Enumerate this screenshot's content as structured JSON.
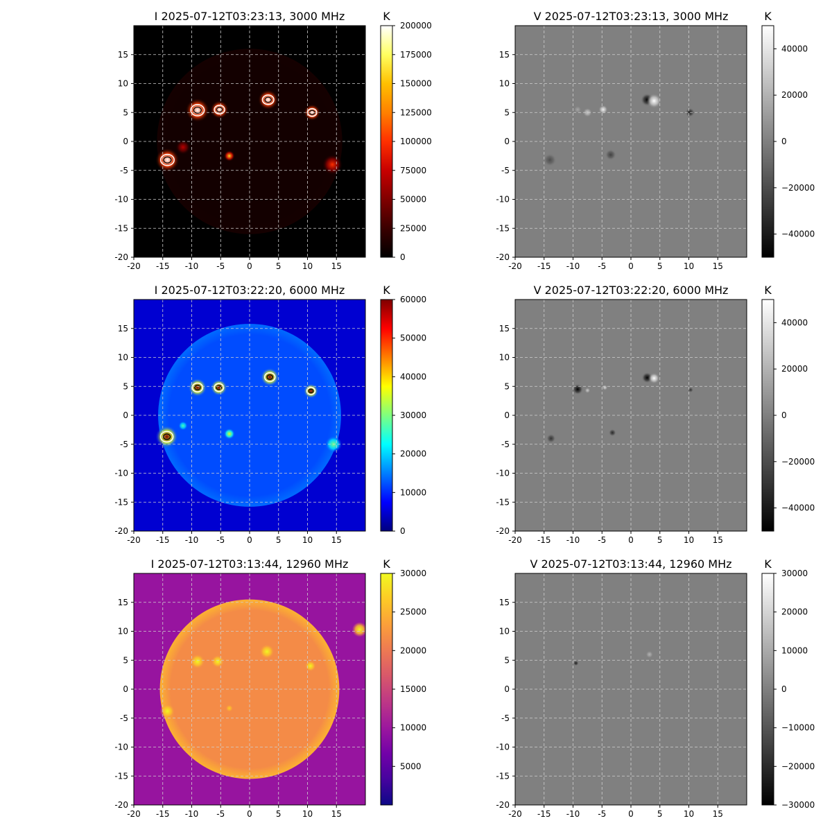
{
  "figure": {
    "background": "#ffffff"
  },
  "chart_data": [
    {
      "type": "heatmap",
      "title": "I 2025-07-12T03:23:13, 3000 MHz",
      "colormap": "hot",
      "colorbar": {
        "label": "K",
        "ticks": [
          "0",
          "25000",
          "50000",
          "75000",
          "100000",
          "125000",
          "150000",
          "175000",
          "200000"
        ],
        "range": [
          0,
          200000
        ]
      },
      "xlim": [
        -20,
        20
      ],
      "ylim": [
        -20,
        20
      ],
      "xticks": [
        "-20",
        "-15",
        "-10",
        "-5",
        "0",
        "5",
        "10",
        "15"
      ],
      "yticks": [
        "-20",
        "-15",
        "-10",
        "-5",
        "0",
        "5",
        "10",
        "15"
      ],
      "grid": true,
      "disk": {
        "present": true,
        "radius": 16,
        "level": 0.04
      },
      "sources": [
        {
          "x": -9,
          "y": 5.4,
          "level": 1.0,
          "size": 1.3
        },
        {
          "x": -5.2,
          "y": 5.5,
          "level": 1.0,
          "size": 1.0
        },
        {
          "x": 3.2,
          "y": 7.2,
          "level": 1.0,
          "size": 1.1
        },
        {
          "x": 10.8,
          "y": 5.0,
          "level": 1.0,
          "size": 0.9
        },
        {
          "x": -14.2,
          "y": -3.2,
          "level": 1.0,
          "size": 1.3
        },
        {
          "x": -3.5,
          "y": -2.5,
          "level": 0.8,
          "size": 0.6
        },
        {
          "x": 14.3,
          "y": -4.0,
          "level": 0.5,
          "size": 1.1
        },
        {
          "x": -11.5,
          "y": -1.0,
          "level": 0.35,
          "size": 0.8
        }
      ],
      "contours": true
    },
    {
      "type": "heatmap",
      "title": "V 2025-07-12T03:23:13, 3000 MHz",
      "colormap": "gray",
      "colorbar": {
        "label": "K",
        "ticks": [
          "40000",
          "20000",
          "0",
          "−20000",
          "−40000"
        ],
        "range": [
          -50000,
          50000
        ]
      },
      "xlim": [
        -20,
        20
      ],
      "ylim": [
        -20,
        20
      ],
      "xticks": [
        "-20",
        "-15",
        "-10",
        "-5",
        "0",
        "5",
        "10",
        "15"
      ],
      "yticks": [
        "-20",
        "-15",
        "-10",
        "-5",
        "0",
        "5",
        "10",
        "15"
      ],
      "grid": true,
      "background_level": 0.5,
      "sources": [
        {
          "x": 2.8,
          "y": 7.2,
          "level": 0.0,
          "size": 0.7
        },
        {
          "x": 4.0,
          "y": 7.0,
          "level": 1.0,
          "size": 0.8
        },
        {
          "x": 10.2,
          "y": 5.0,
          "level": 0.1,
          "size": 0.5
        },
        {
          "x": -4.8,
          "y": 5.5,
          "level": 0.95,
          "size": 0.5
        },
        {
          "x": -7.5,
          "y": 5.0,
          "level": 0.8,
          "size": 0.5
        },
        {
          "x": -9.2,
          "y": 5.5,
          "level": 0.65,
          "size": 0.4
        },
        {
          "x": -14.0,
          "y": -3.2,
          "level": 0.3,
          "size": 0.7
        },
        {
          "x": -3.5,
          "y": -2.3,
          "level": 0.25,
          "size": 0.6
        }
      ]
    },
    {
      "type": "heatmap",
      "title": "I 2025-07-12T03:22:20, 6000 MHz",
      "colormap": "jet",
      "colorbar": {
        "label": "K",
        "ticks": [
          "0",
          "10000",
          "20000",
          "30000",
          "40000",
          "50000",
          "60000"
        ],
        "range": [
          0,
          60000
        ]
      },
      "xlim": [
        -20,
        20
      ],
      "ylim": [
        -20,
        20
      ],
      "xticks": [
        "-20",
        "-15",
        "-10",
        "-5",
        "0",
        "5",
        "10",
        "15"
      ],
      "yticks": [
        "-20",
        "-15",
        "-10",
        "-5",
        "0",
        "5",
        "10",
        "15"
      ],
      "grid": true,
      "disk": {
        "present": true,
        "radius": 15.8,
        "level": 0.2
      },
      "background_level": 0.08,
      "sources": [
        {
          "x": -9,
          "y": 4.8,
          "level": 1.0,
          "size": 1.0
        },
        {
          "x": -5.3,
          "y": 4.8,
          "level": 1.0,
          "size": 0.9
        },
        {
          "x": 3.5,
          "y": 6.6,
          "level": 1.0,
          "size": 1.0
        },
        {
          "x": 10.6,
          "y": 4.2,
          "level": 1.0,
          "size": 0.8
        },
        {
          "x": -14.3,
          "y": -3.7,
          "level": 1.0,
          "size": 1.2
        },
        {
          "x": -3.5,
          "y": -3.2,
          "level": 0.6,
          "size": 0.6
        },
        {
          "x": 14.5,
          "y": -5.0,
          "level": 0.5,
          "size": 0.9
        },
        {
          "x": -11.5,
          "y": -1.8,
          "level": 0.45,
          "size": 0.5
        }
      ],
      "contours": true
    },
    {
      "type": "heatmap",
      "title": "V 2025-07-12T03:22:20, 6000 MHz",
      "colormap": "gray",
      "colorbar": {
        "label": "K",
        "ticks": [
          "40000",
          "20000",
          "0",
          "−20000",
          "−40000"
        ],
        "range": [
          -50000,
          50000
        ]
      },
      "xlim": [
        -20,
        20
      ],
      "ylim": [
        -20,
        20
      ],
      "xticks": [
        "-20",
        "-15",
        "-10",
        "-5",
        "0",
        "5",
        "10",
        "15"
      ],
      "yticks": [
        "-20",
        "-15",
        "-10",
        "-5",
        "0",
        "5",
        "10",
        "15"
      ],
      "grid": true,
      "background_level": 0.5,
      "sources": [
        {
          "x": 2.8,
          "y": 6.5,
          "level": 0.0,
          "size": 0.6
        },
        {
          "x": 4.0,
          "y": 6.4,
          "level": 1.0,
          "size": 0.6
        },
        {
          "x": -9.2,
          "y": 4.5,
          "level": 0.0,
          "size": 0.6
        },
        {
          "x": -7.5,
          "y": 4.3,
          "level": 0.8,
          "size": 0.3
        },
        {
          "x": -4.5,
          "y": 4.8,
          "level": 0.85,
          "size": 0.3
        },
        {
          "x": 10.3,
          "y": 4.4,
          "level": 0.2,
          "size": 0.3
        },
        {
          "x": -13.8,
          "y": -4.0,
          "level": 0.2,
          "size": 0.5
        },
        {
          "x": -3.2,
          "y": -3.0,
          "level": 0.15,
          "size": 0.4
        }
      ]
    },
    {
      "type": "heatmap",
      "title": "I 2025-07-12T03:13:44, 12960 MHz",
      "colormap": "plasma",
      "colorbar": {
        "label": "K",
        "ticks": [
          "5000",
          "10000",
          "15000",
          "20000",
          "25000",
          "30000"
        ],
        "range": [
          0,
          30000
        ]
      },
      "xlim": [
        -20,
        20
      ],
      "ylim": [
        -20,
        20
      ],
      "xticks": [
        "-20",
        "-15",
        "-10",
        "-5",
        "0",
        "5",
        "10",
        "15"
      ],
      "yticks": [
        "-20",
        "-15",
        "-10",
        "-5",
        "0",
        "5",
        "10",
        "15"
      ],
      "grid": true,
      "disk": {
        "present": true,
        "radius": 15.5,
        "level": 0.72
      },
      "background_level": 0.32,
      "sources": [
        {
          "x": -9.0,
          "y": 4.8,
          "level": 1.0,
          "size": 0.8
        },
        {
          "x": -5.5,
          "y": 4.8,
          "level": 1.0,
          "size": 0.7
        },
        {
          "x": 3.0,
          "y": 6.5,
          "level": 1.0,
          "size": 0.8
        },
        {
          "x": 10.5,
          "y": 4.0,
          "level": 1.0,
          "size": 0.6
        },
        {
          "x": -14.2,
          "y": -3.8,
          "level": 1.0,
          "size": 0.8
        },
        {
          "x": 19.0,
          "y": 10.3,
          "level": 1.0,
          "size": 0.8
        },
        {
          "x": -3.5,
          "y": -3.3,
          "level": 0.9,
          "size": 0.4
        }
      ]
    },
    {
      "type": "heatmap",
      "title": "V 2025-07-12T03:13:44, 12960 MHz",
      "colormap": "gray",
      "colorbar": {
        "label": "K",
        "ticks": [
          "30000",
          "20000",
          "10000",
          "0",
          "−10000",
          "−20000",
          "−30000"
        ],
        "range": [
          -30000,
          30000
        ]
      },
      "xlim": [
        -20,
        20
      ],
      "ylim": [
        -20,
        20
      ],
      "xticks": [
        "-20",
        "-15",
        "-10",
        "-5",
        "0",
        "5",
        "10",
        "15"
      ],
      "yticks": [
        "-20",
        "-15",
        "-10",
        "-5",
        "0",
        "5",
        "10",
        "15"
      ],
      "grid": true,
      "background_level": 0.5,
      "sources": [
        {
          "x": -9.5,
          "y": 4.5,
          "level": 0.1,
          "size": 0.3
        },
        {
          "x": 3.2,
          "y": 6.0,
          "level": 0.7,
          "size": 0.4
        }
      ]
    }
  ]
}
